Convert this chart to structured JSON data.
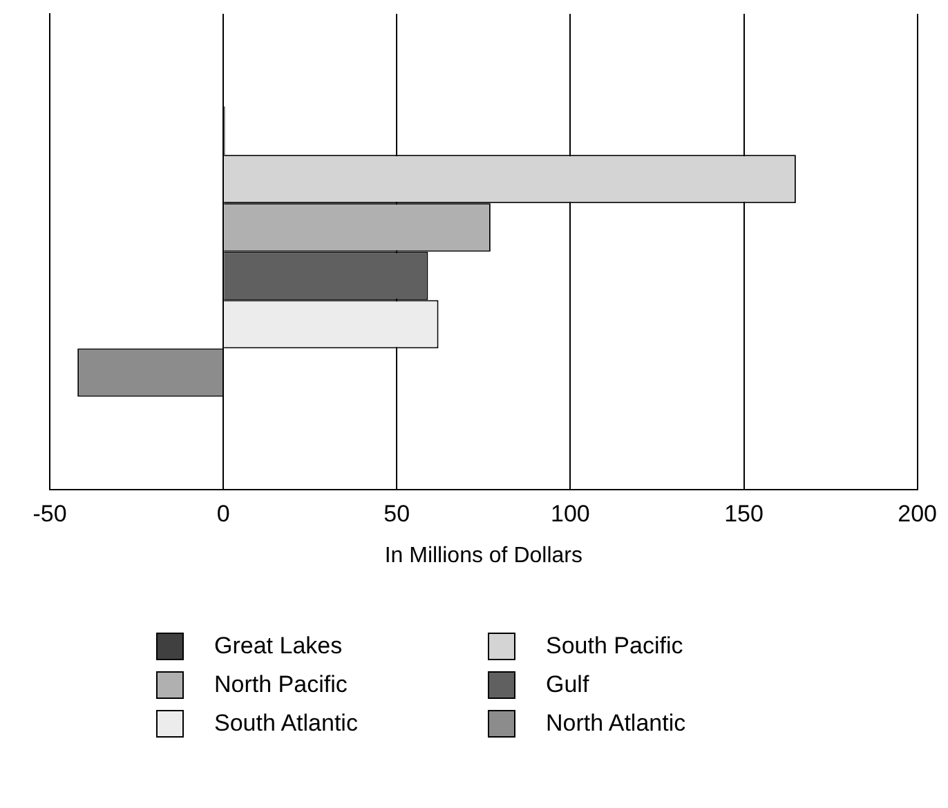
{
  "chart_data": {
    "type": "bar",
    "orientation": "horizontal",
    "categories": [
      null
    ],
    "xlabel": "In Millions of Dollars",
    "series": [
      {
        "name": "Great Lakes",
        "color": "#404040",
        "values": [
          0.5
        ]
      },
      {
        "name": "South Pacific",
        "color": "#d4d4d4",
        "values": [
          165
        ]
      },
      {
        "name": "North Pacific",
        "color": "#b0b0b0",
        "values": [
          77
        ]
      },
      {
        "name": "Gulf",
        "color": "#606060",
        "values": [
          59
        ]
      },
      {
        "name": "South Atlantic",
        "color": "#ececec",
        "values": [
          62
        ]
      },
      {
        "name": "North Atlantic",
        "color": "#8c8c8c",
        "values": [
          -42
        ]
      }
    ],
    "xlim": [
      -50,
      200
    ],
    "xticks": [
      -50,
      0,
      50,
      100,
      150,
      200
    ],
    "grid": "x",
    "legend": "bottom",
    "tick_labels": "x"
  }
}
